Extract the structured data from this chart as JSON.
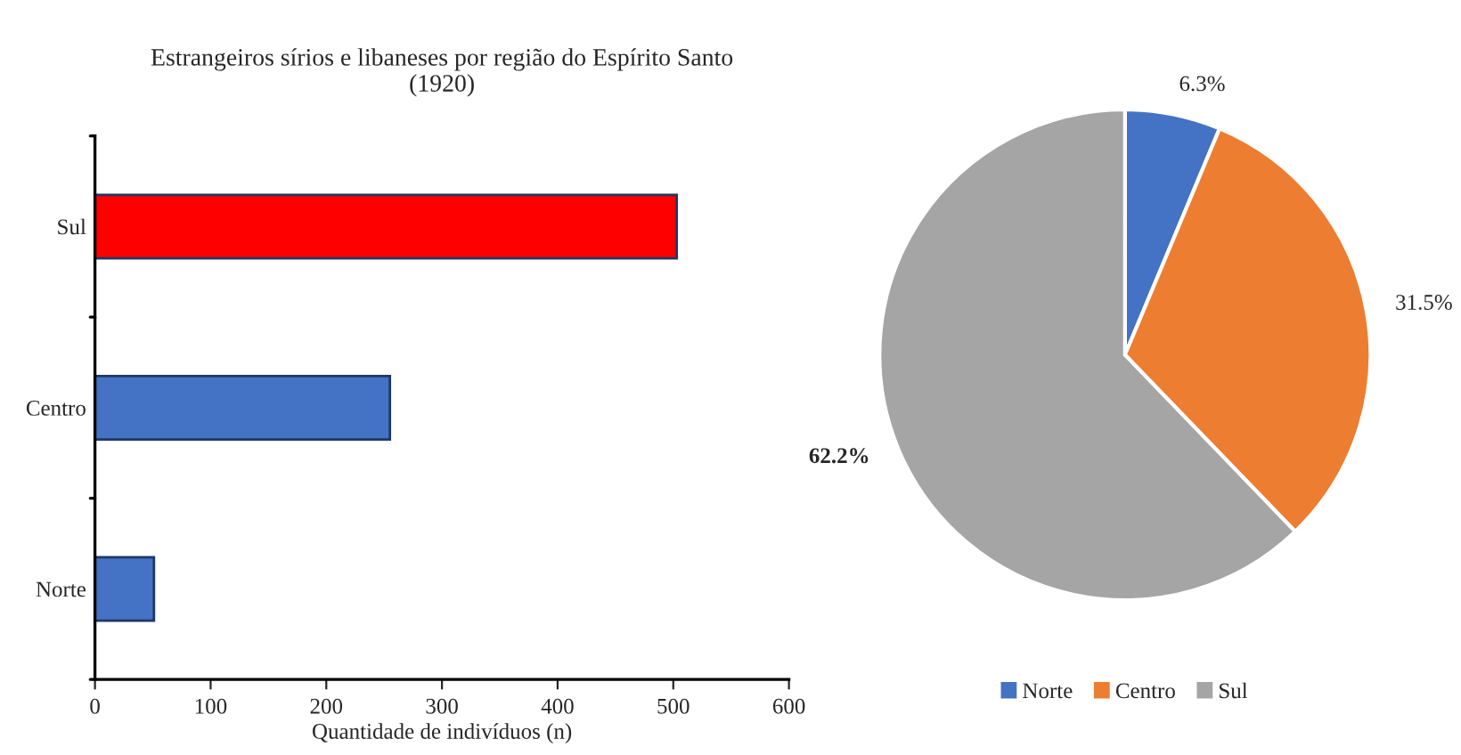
{
  "chart_data": [
    {
      "type": "bar",
      "title": "Estrangeiros sírios e libaneses por região do Espírito Santo\n(1920)",
      "orientation": "horizontal",
      "categories": [
        "Sul",
        "Centro",
        "Norte"
      ],
      "values": [
        503,
        255,
        51
      ],
      "colors": [
        "#ff0000",
        "#4472c4",
        "#4472c4"
      ],
      "xlim": [
        0,
        600
      ],
      "xticks": [
        0,
        100,
        200,
        300,
        400,
        500,
        600
      ],
      "xlabel": "Quantidade de indivíduos (n)",
      "grid": false
    },
    {
      "type": "pie",
      "categories": [
        "Norte",
        "Centro",
        "Sul"
      ],
      "values": [
        6.3,
        31.5,
        62.2
      ],
      "colors": [
        "#4472c4",
        "#ed7d31",
        "#a5a5a5"
      ],
      "value_labels": [
        "6.3%",
        "31.5%",
        "62.2%"
      ],
      "legend": "bottom"
    }
  ]
}
